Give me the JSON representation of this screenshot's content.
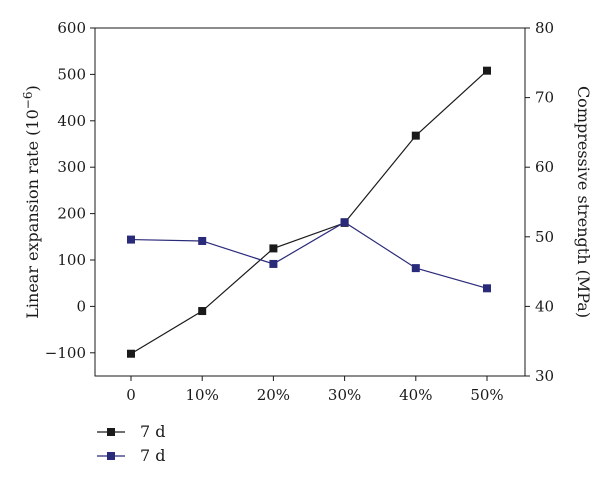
{
  "chart_data": {
    "type": "line",
    "categories": [
      "0",
      "10%",
      "20%",
      "30%",
      "40%",
      "50%"
    ],
    "y_left": {
      "label_main": "Linear expansion rate (10",
      "label_sup": "−6",
      "label_end": ")",
      "ylim": [
        -150,
        600
      ],
      "ticks": [
        -100,
        0,
        100,
        200,
        300,
        400,
        500,
        600
      ],
      "tick_labels": [
        "−100",
        "0",
        "100",
        "200",
        "300",
        "400",
        "500",
        "600"
      ]
    },
    "y_right": {
      "label": "Compressive strength (MPa)",
      "ylim": [
        30,
        80
      ],
      "ticks": [
        30,
        40,
        50,
        60,
        70,
        80
      ],
      "tick_labels": [
        "30",
        "40",
        "50",
        "60",
        "70",
        "80"
      ]
    },
    "series": [
      {
        "name": "7 d",
        "axis": "left",
        "color": "#1a1a1a",
        "marker": "square",
        "values": [
          -102,
          -10,
          125,
          180,
          368,
          508
        ]
      },
      {
        "name": "7 d",
        "axis": "right",
        "color": "#2a2a7a",
        "marker": "square",
        "values": [
          49.6,
          49.4,
          46.1,
          52.1,
          45.5,
          42.6
        ]
      }
    ],
    "legend": {
      "placement": "bottom-left"
    },
    "grid": false
  }
}
